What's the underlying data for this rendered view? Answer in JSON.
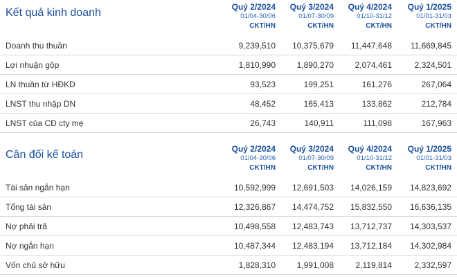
{
  "business": {
    "title": "Kết quả kinh doanh",
    "periods": [
      {
        "quarter": "Quý 2/2024",
        "range": "01/04-30/06",
        "unit": "CKT/HN"
      },
      {
        "quarter": "Quý 3/2024",
        "range": "01/07-30/09",
        "unit": "CKT/HN"
      },
      {
        "quarter": "Quý 4/2024",
        "range": "01/10-31/12",
        "unit": "CKT/HN"
      },
      {
        "quarter": "Quý 1/2025",
        "range": "01/01-31/03",
        "unit": "CKT/HN"
      }
    ],
    "rows": [
      {
        "label": "Doanh thu thuần",
        "values": [
          "9,239,510",
          "10,375,679",
          "11,447,648",
          "11,669,845"
        ]
      },
      {
        "label": "Lợi nhuận gộp",
        "values": [
          "1,810,990",
          "1,890,270",
          "2,074,461",
          "2,324,501"
        ]
      },
      {
        "label": "LN thuần từ HĐKD",
        "values": [
          "93,523",
          "199,251",
          "161,276",
          "267,064"
        ]
      },
      {
        "label": "LNST thu nhập DN",
        "values": [
          "48,452",
          "165,413",
          "133,862",
          "212,784"
        ]
      },
      {
        "label": "LNST của CĐ cty mẹ",
        "values": [
          "26,743",
          "140,911",
          "111,098",
          "167,963"
        ]
      }
    ]
  },
  "balance": {
    "title": "Cân đối kế toán",
    "periods": [
      {
        "quarter": "Quý 2/2024",
        "range": "01/04-30/06",
        "unit": "CKT/HN"
      },
      {
        "quarter": "Quý 3/2024",
        "range": "01/07-30/09",
        "unit": "CKT/HN"
      },
      {
        "quarter": "Quý 4/2024",
        "range": "01/10-31/12",
        "unit": "CKT/HN"
      },
      {
        "quarter": "Quý 1/2025",
        "range": "01/01-31/03",
        "unit": "CKT/HN"
      }
    ],
    "rows": [
      {
        "label": "Tài sản ngắn hạn",
        "values": [
          "10,592,999",
          "12,691,503",
          "14,026,159",
          "14,823,692"
        ]
      },
      {
        "label": "Tổng tài sản",
        "values": [
          "12,326,867",
          "14,474,752",
          "15,832,550",
          "16,636,135"
        ]
      },
      {
        "label": "Nợ phải trả",
        "values": [
          "10,498,558",
          "12,483,743",
          "13,712,737",
          "14,303,537"
        ]
      },
      {
        "label": "Nợ ngắn hạn",
        "values": [
          "10,487,344",
          "12,483,194",
          "13,712,184",
          "14,302,984"
        ]
      },
      {
        "label": "Vốn chủ sở hữu",
        "values": [
          "1,828,310",
          "1,991,008",
          "2,119,814",
          "2,332,597"
        ]
      }
    ]
  },
  "colors": {
    "accent": "#1a4f9c",
    "divider": "#d9d9d9",
    "text": "#333333"
  }
}
